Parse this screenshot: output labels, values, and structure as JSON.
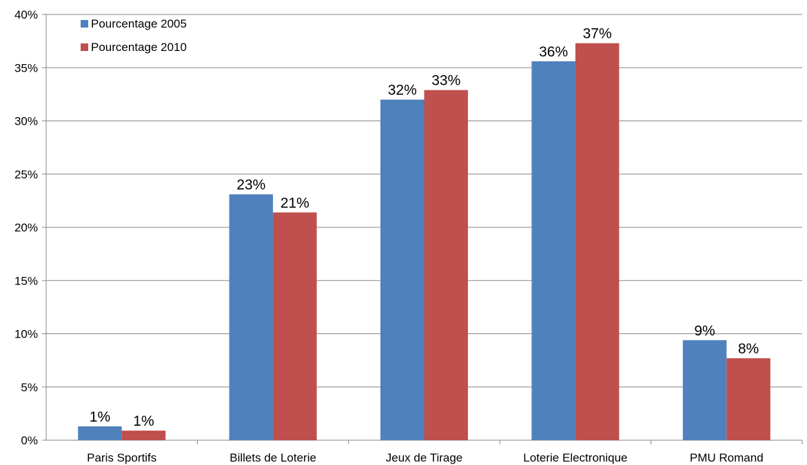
{
  "chart_data": {
    "type": "bar",
    "title": "",
    "xlabel": "",
    "ylabel": "",
    "categories": [
      "Paris Sportifs",
      "Billets de Loterie",
      "Jeux de Tirage",
      "Loterie Electronique",
      "PMU Romand"
    ],
    "series": [
      {
        "name": "Pourcentage 2005",
        "color": "#4f81bd",
        "values": [
          1.3,
          23.1,
          32.0,
          35.6,
          9.4
        ],
        "data_labels": [
          "1%",
          "23%",
          "32%",
          "36%",
          "9%"
        ]
      },
      {
        "name": "Pourcentage 2010",
        "color": "#c0504d",
        "values": [
          0.9,
          21.4,
          32.9,
          37.3,
          7.7
        ],
        "data_labels": [
          "1%",
          "21%",
          "33%",
          "37%",
          "8%"
        ]
      }
    ],
    "ylim": [
      0,
      40
    ],
    "yticks": [
      0,
      5,
      10,
      15,
      20,
      25,
      30,
      35,
      40
    ],
    "ytick_labels": [
      "0%",
      "5%",
      "10%",
      "15%",
      "20%",
      "25%",
      "30%",
      "35%",
      "40%"
    ],
    "grid": true,
    "legend": "top-left"
  }
}
